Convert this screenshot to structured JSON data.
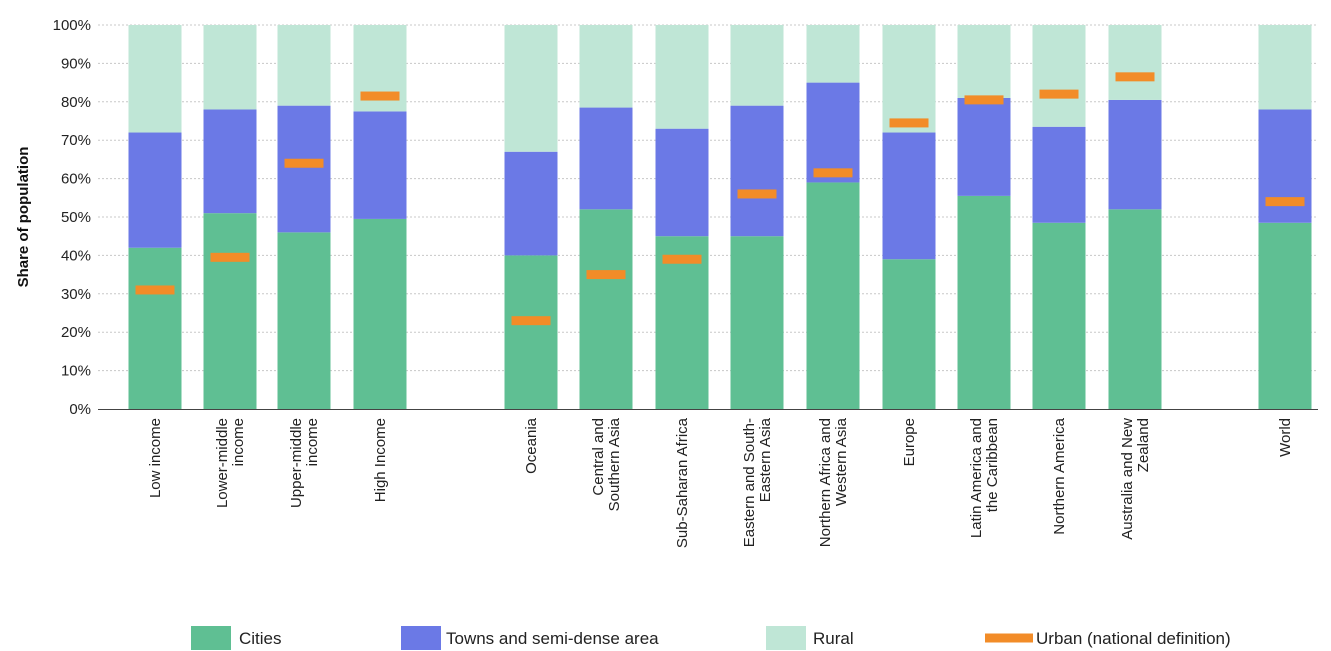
{
  "chart_data": {
    "type": "bar",
    "stacked": true,
    "ylabel": "Share of population",
    "ylim": [
      0,
      100
    ],
    "yticks": [
      "0%",
      "10%",
      "20%",
      "30%",
      "40%",
      "50%",
      "60%",
      "70%",
      "80%",
      "90%",
      "100%"
    ],
    "grid": "horizontal dotted",
    "categories": [
      [
        "Low income"
      ],
      [
        "Lower-middle",
        "income"
      ],
      [
        "Upper-middle",
        "income"
      ],
      [
        "High Income"
      ],
      [
        "Oceania"
      ],
      [
        "Central and",
        "Southern Asia"
      ],
      [
        "Sub-Saharan Africa"
      ],
      [
        "Eastern and South-",
        "Eastern Asia"
      ],
      [
        "Northern Africa and",
        "Western Asia"
      ],
      [
        "Europe"
      ],
      [
        "Latin America and",
        "the Caribbean"
      ],
      [
        "Northern America"
      ],
      [
        "Australia and New",
        "Zealand"
      ],
      [
        "World"
      ]
    ],
    "category_groups": [
      [
        0,
        1,
        2,
        3
      ],
      [
        4,
        5,
        6,
        7,
        8,
        9,
        10,
        11,
        12
      ],
      [
        13
      ]
    ],
    "series": [
      {
        "name": "Cities",
        "type": "bar",
        "color": "#5fbf93",
        "values": [
          42,
          51,
          46,
          49.5,
          40,
          52,
          45,
          45,
          59,
          39,
          55.5,
          48.5,
          52,
          48.5
        ]
      },
      {
        "name": "Towns and semi-dense area",
        "type": "bar",
        "color": "#6b79e6",
        "values": [
          30,
          27,
          33,
          28,
          27,
          26.5,
          28,
          34,
          26,
          33,
          25.5,
          25,
          28.5,
          29.5
        ]
      },
      {
        "name": "Rural",
        "type": "bar",
        "color": "#bfe6d6",
        "values": [
          28,
          22,
          21,
          22.5,
          33,
          21.5,
          27,
          21,
          15,
          28,
          19,
          26.5,
          19.5,
          22
        ]
      },
      {
        "name": "Urban (national definition)",
        "type": "marker",
        "color": "#f28c28",
        "values": [
          31,
          39.5,
          64,
          81.5,
          23,
          35,
          39,
          56,
          61.5,
          74.5,
          80.5,
          82,
          86.5,
          54
        ]
      }
    ],
    "legend": {
      "position": "bottom",
      "items": [
        "Cities",
        "Towns and semi-dense area",
        "Rural",
        "Urban (national definition)"
      ]
    }
  }
}
